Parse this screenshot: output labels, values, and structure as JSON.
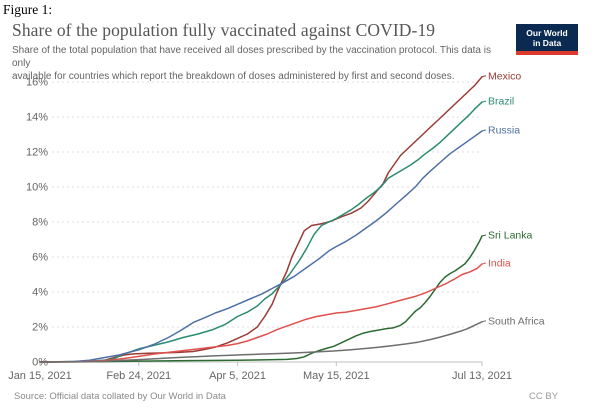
{
  "figure_label": "Figure 1:",
  "header": {
    "title": "Share of the population fully vaccinated against COVID-19",
    "subtitle_line1": "Share of the total population that have received all doses prescribed by the vaccination protocol. This data is only",
    "subtitle_line2": "available for countries which report the breakdown of doses administered by first and second doses.",
    "logo": {
      "line1": "Our World",
      "line2": "in Data",
      "bg_color": "#0b2a52",
      "accent_color": "#dc3a2a"
    }
  },
  "chart_data": {
    "type": "line",
    "title": "Share of the population fully vaccinated against COVID-19",
    "xlabel": "",
    "ylabel": "",
    "unit": "%",
    "ylim": [
      0,
      16.5
    ],
    "grid": "horizontal dashed",
    "legend_position": "line-end labels at right",
    "x_range_days": 179,
    "x_ticks": [
      {
        "day": 0,
        "label": "Jan 15, 2021"
      },
      {
        "day": 40,
        "label": "Feb 24, 2021"
      },
      {
        "day": 80,
        "label": "Apr 5, 2021"
      },
      {
        "day": 120,
        "label": "May 15, 2021"
      },
      {
        "day": 179,
        "label": "Jul 13, 2021"
      }
    ],
    "y_ticks": [
      {
        "value": 0,
        "label": "0%"
      },
      {
        "value": 2,
        "label": "2%"
      },
      {
        "value": 4,
        "label": "4%"
      },
      {
        "value": 6,
        "label": "6%"
      },
      {
        "value": 8,
        "label": "8%"
      },
      {
        "value": 10,
        "label": "10%"
      },
      {
        "value": 12,
        "label": "12%"
      },
      {
        "value": 14,
        "label": "14%"
      },
      {
        "value": 16,
        "label": "16%"
      }
    ],
    "series": [
      {
        "name": "Mexico",
        "color": "#993b34",
        "points": [
          [
            0,
            0
          ],
          [
            20,
            0.03
          ],
          [
            26,
            0.1
          ],
          [
            30,
            0.25
          ],
          [
            34,
            0.4
          ],
          [
            38,
            0.46
          ],
          [
            44,
            0.5
          ],
          [
            50,
            0.52
          ],
          [
            56,
            0.55
          ],
          [
            62,
            0.6
          ],
          [
            66,
            0.7
          ],
          [
            71,
            0.85
          ],
          [
            76,
            1.1
          ],
          [
            80,
            1.35
          ],
          [
            84,
            1.6
          ],
          [
            88,
            2.0
          ],
          [
            91,
            2.6
          ],
          [
            94,
            3.3
          ],
          [
            96,
            4.0
          ],
          [
            98,
            4.6
          ],
          [
            100,
            5.2
          ],
          [
            102,
            6.0
          ],
          [
            105,
            6.9
          ],
          [
            107,
            7.5
          ],
          [
            110,
            7.8
          ],
          [
            114,
            7.9
          ],
          [
            118,
            8.05
          ],
          [
            122,
            8.3
          ],
          [
            126,
            8.5
          ],
          [
            130,
            8.8
          ],
          [
            133,
            9.2
          ],
          [
            136,
            9.7
          ],
          [
            139,
            10.2
          ],
          [
            141,
            10.8
          ],
          [
            143,
            11.2
          ],
          [
            146,
            11.8
          ],
          [
            149,
            12.2
          ],
          [
            152,
            12.6
          ],
          [
            155,
            13.0
          ],
          [
            158,
            13.4
          ],
          [
            161,
            13.8
          ],
          [
            164,
            14.2
          ],
          [
            167,
            14.6
          ],
          [
            170,
            15.0
          ],
          [
            173,
            15.4
          ],
          [
            176,
            15.8
          ],
          [
            179,
            16.3
          ]
        ]
      },
      {
        "name": "Brazil",
        "color": "#2a8c6f",
        "points": [
          [
            0,
            0
          ],
          [
            12,
            0.02
          ],
          [
            20,
            0.05
          ],
          [
            26,
            0.1
          ],
          [
            29,
            0.15
          ],
          [
            31,
            0.25
          ],
          [
            33,
            0.42
          ],
          [
            36,
            0.55
          ],
          [
            38,
            0.65
          ],
          [
            40,
            0.75
          ],
          [
            46,
            0.95
          ],
          [
            52,
            1.15
          ],
          [
            58,
            1.4
          ],
          [
            64,
            1.6
          ],
          [
            70,
            1.85
          ],
          [
            75,
            2.15
          ],
          [
            80,
            2.6
          ],
          [
            84,
            2.85
          ],
          [
            88,
            3.2
          ],
          [
            91,
            3.6
          ],
          [
            94,
            3.9
          ],
          [
            98,
            4.5
          ],
          [
            101,
            5.0
          ],
          [
            105,
            5.8
          ],
          [
            108,
            6.5
          ],
          [
            111,
            7.3
          ],
          [
            114,
            7.8
          ],
          [
            117,
            8.0
          ],
          [
            120,
            8.2
          ],
          [
            123,
            8.45
          ],
          [
            126,
            8.7
          ],
          [
            129,
            9.0
          ],
          [
            132,
            9.35
          ],
          [
            135,
            9.65
          ],
          [
            138,
            10.0
          ],
          [
            141,
            10.5
          ],
          [
            144,
            10.75
          ],
          [
            147,
            11.0
          ],
          [
            150,
            11.25
          ],
          [
            153,
            11.55
          ],
          [
            156,
            11.9
          ],
          [
            159,
            12.2
          ],
          [
            162,
            12.55
          ],
          [
            165,
            12.95
          ],
          [
            168,
            13.35
          ],
          [
            171,
            13.75
          ],
          [
            174,
            14.15
          ],
          [
            176,
            14.45
          ],
          [
            179,
            14.85
          ]
        ]
      },
      {
        "name": "Russia",
        "color": "#4c6fa5",
        "points": [
          [
            0,
            0
          ],
          [
            14,
            0.03
          ],
          [
            20,
            0.1
          ],
          [
            26,
            0.25
          ],
          [
            32,
            0.4
          ],
          [
            36,
            0.55
          ],
          [
            40,
            0.7
          ],
          [
            46,
            1.0
          ],
          [
            52,
            1.4
          ],
          [
            57,
            1.8
          ],
          [
            62,
            2.25
          ],
          [
            67,
            2.55
          ],
          [
            71,
            2.8
          ],
          [
            76,
            3.05
          ],
          [
            80,
            3.3
          ],
          [
            85,
            3.6
          ],
          [
            90,
            3.9
          ],
          [
            94,
            4.2
          ],
          [
            98,
            4.5
          ],
          [
            103,
            4.9
          ],
          [
            108,
            5.4
          ],
          [
            113,
            5.9
          ],
          [
            117,
            6.35
          ],
          [
            120,
            6.6
          ],
          [
            124,
            6.9
          ],
          [
            128,
            7.25
          ],
          [
            132,
            7.65
          ],
          [
            136,
            8.05
          ],
          [
            140,
            8.5
          ],
          [
            144,
            9.0
          ],
          [
            148,
            9.5
          ],
          [
            152,
            10.0
          ],
          [
            155,
            10.5
          ],
          [
            158,
            10.9
          ],
          [
            162,
            11.4
          ],
          [
            166,
            11.9
          ],
          [
            170,
            12.3
          ],
          [
            174,
            12.7
          ],
          [
            179,
            13.2
          ]
        ]
      },
      {
        "name": "Sri Lanka",
        "color": "#2c6b32",
        "points": [
          [
            0,
            0
          ],
          [
            20,
            0.01
          ],
          [
            30,
            0.03
          ],
          [
            40,
            0.05
          ],
          [
            60,
            0.08
          ],
          [
            80,
            0.1
          ],
          [
            90,
            0.12
          ],
          [
            100,
            0.15
          ],
          [
            104,
            0.2
          ],
          [
            107,
            0.3
          ],
          [
            110,
            0.5
          ],
          [
            113,
            0.65
          ],
          [
            116,
            0.78
          ],
          [
            119,
            0.9
          ],
          [
            122,
            1.1
          ],
          [
            125,
            1.3
          ],
          [
            128,
            1.5
          ],
          [
            131,
            1.65
          ],
          [
            134,
            1.75
          ],
          [
            137,
            1.82
          ],
          [
            140,
            1.9
          ],
          [
            143,
            1.95
          ],
          [
            146,
            2.1
          ],
          [
            148,
            2.3
          ],
          [
            150,
            2.6
          ],
          [
            152,
            2.9
          ],
          [
            154,
            3.1
          ],
          [
            156,
            3.4
          ],
          [
            158,
            3.75
          ],
          [
            160,
            4.15
          ],
          [
            162,
            4.55
          ],
          [
            164,
            4.85
          ],
          [
            166,
            5.05
          ],
          [
            168,
            5.2
          ],
          [
            170,
            5.4
          ],
          [
            172,
            5.6
          ],
          [
            174,
            5.95
          ],
          [
            176,
            6.4
          ],
          [
            178,
            6.9
          ],
          [
            179,
            7.2
          ]
        ]
      },
      {
        "name": "India",
        "color": "#e0504d",
        "points": [
          [
            0,
            0
          ],
          [
            16,
            0.01
          ],
          [
            22,
            0.04
          ],
          [
            28,
            0.1
          ],
          [
            34,
            0.2
          ],
          [
            40,
            0.32
          ],
          [
            46,
            0.45
          ],
          [
            52,
            0.55
          ],
          [
            58,
            0.65
          ],
          [
            64,
            0.75
          ],
          [
            70,
            0.85
          ],
          [
            76,
            0.95
          ],
          [
            80,
            1.05
          ],
          [
            84,
            1.2
          ],
          [
            88,
            1.4
          ],
          [
            92,
            1.6
          ],
          [
            96,
            1.85
          ],
          [
            100,
            2.05
          ],
          [
            104,
            2.25
          ],
          [
            108,
            2.45
          ],
          [
            112,
            2.6
          ],
          [
            116,
            2.7
          ],
          [
            120,
            2.8
          ],
          [
            124,
            2.85
          ],
          [
            128,
            2.95
          ],
          [
            132,
            3.05
          ],
          [
            136,
            3.15
          ],
          [
            140,
            3.3
          ],
          [
            144,
            3.45
          ],
          [
            148,
            3.6
          ],
          [
            152,
            3.75
          ],
          [
            156,
            3.95
          ],
          [
            160,
            4.2
          ],
          [
            164,
            4.45
          ],
          [
            168,
            4.75
          ],
          [
            171,
            5.0
          ],
          [
            174,
            5.15
          ],
          [
            177,
            5.35
          ],
          [
            179,
            5.6
          ]
        ]
      },
      {
        "name": "South Africa",
        "color": "#6e6e6e",
        "points": [
          [
            0,
            0
          ],
          [
            22,
            0.01
          ],
          [
            28,
            0.05
          ],
          [
            34,
            0.1
          ],
          [
            40,
            0.14
          ],
          [
            46,
            0.18
          ],
          [
            52,
            0.23
          ],
          [
            58,
            0.27
          ],
          [
            64,
            0.31
          ],
          [
            70,
            0.35
          ],
          [
            76,
            0.38
          ],
          [
            82,
            0.41
          ],
          [
            88,
            0.44
          ],
          [
            94,
            0.47
          ],
          [
            100,
            0.5
          ],
          [
            106,
            0.54
          ],
          [
            112,
            0.58
          ],
          [
            118,
            0.62
          ],
          [
            124,
            0.68
          ],
          [
            130,
            0.75
          ],
          [
            136,
            0.83
          ],
          [
            142,
            0.92
          ],
          [
            148,
            1.03
          ],
          [
            153,
            1.13
          ],
          [
            158,
            1.28
          ],
          [
            162,
            1.42
          ],
          [
            166,
            1.58
          ],
          [
            170,
            1.75
          ],
          [
            173,
            1.9
          ],
          [
            176,
            2.1
          ],
          [
            179,
            2.3
          ]
        ]
      }
    ]
  },
  "footer": {
    "source": "Source: Official data collated by Our World in Data",
    "license": "CC BY"
  }
}
